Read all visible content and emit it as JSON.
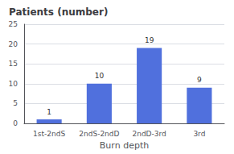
{
  "chart_data": {
    "type": "bar",
    "title": "Patients (number)",
    "xlabel": "Burn depth",
    "categories": [
      "1st-2ndS",
      "2ndS-2ndD",
      "2ndD-3rd",
      "3rd"
    ],
    "values": [
      1,
      10,
      19,
      9
    ],
    "ylim": [
      0,
      25
    ],
    "yticks": [
      0,
      5,
      10,
      15,
      20,
      25
    ],
    "grid": true,
    "data_labels": true
  }
}
